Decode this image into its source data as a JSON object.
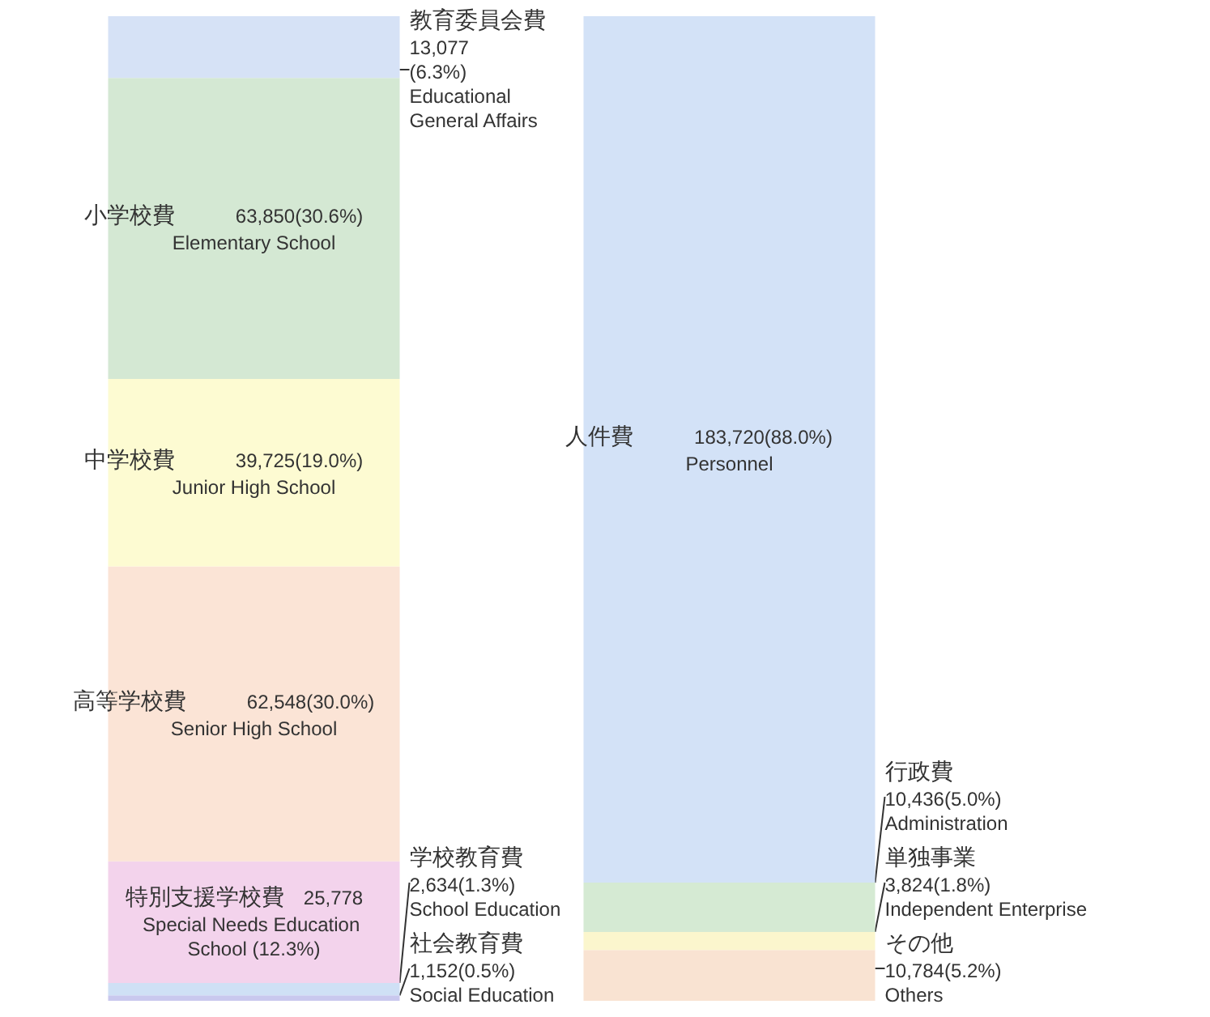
{
  "chart_data": {
    "type": "bar",
    "stacked": true,
    "categories": [
      null,
      null
    ],
    "tick_labels": false,
    "grid": false,
    "series": [
      {
        "name": "社会教育費",
        "color": "#c9c8ee",
        "values": [
          1152,
          null
        ],
        "value_labels": [
          "1,152(0.5%)\nSocial Education",
          null
        ]
      },
      {
        "name": "学校教育費",
        "color": "#cfe0f5",
        "values": [
          2634,
          null
        ],
        "value_labels": [
          "2,634(1.3%)\nSchool Education",
          null
        ]
      },
      {
        "name": "特別支援学校費",
        "color": "#f3d3ec",
        "values": [
          25778,
          null
        ],
        "value_labels": [
          "25,778\nSpecial Needs Education School (12.3%)",
          null
        ]
      },
      {
        "name": "高等学校費",
        "color": "#fbe4d6",
        "values": [
          62548,
          null
        ],
        "value_labels": [
          "62,548(30.0%)\nSenior High School",
          null
        ]
      },
      {
        "name": "中学校費",
        "color": "#fdfbd2",
        "values": [
          39725,
          null
        ],
        "value_labels": [
          "39,725(19.0%)\nJunior High School",
          null
        ]
      },
      {
        "name": "小学校費",
        "color": "#d4e8d3",
        "values": [
          63850,
          null
        ],
        "value_labels": [
          "63,850(30.6%)\nElementary School",
          null
        ]
      },
      {
        "name": "教育委員会費",
        "color": "#d6e2f6",
        "values": [
          13077,
          null
        ],
        "value_labels": [
          "13,077\n(6.3%)\nEducational\nGeneral Affairs",
          null
        ]
      },
      {
        "name": "その他",
        "color": "#f9e3d2",
        "values": [
          null,
          10784
        ],
        "value_labels": [
          null,
          "10,784(5.2%)\nOthers"
        ]
      },
      {
        "name": "単独事業",
        "color": "#fbf6cd",
        "values": [
          null,
          3824
        ],
        "value_labels": [
          null,
          "3,824(1.8%)\nIndependent Enterprise"
        ]
      },
      {
        "name": "行政費",
        "color": "#d5ead3",
        "values": [
          null,
          10436
        ],
        "value_labels": [
          null,
          "10,436(5.0%)\nAdministration"
        ]
      },
      {
        "name": "人件費",
        "color": "#d3e2f7",
        "values": [
          null,
          183720
        ],
        "value_labels": [
          null,
          "183,720(88.0%)\nPersonnel"
        ]
      }
    ]
  }
}
